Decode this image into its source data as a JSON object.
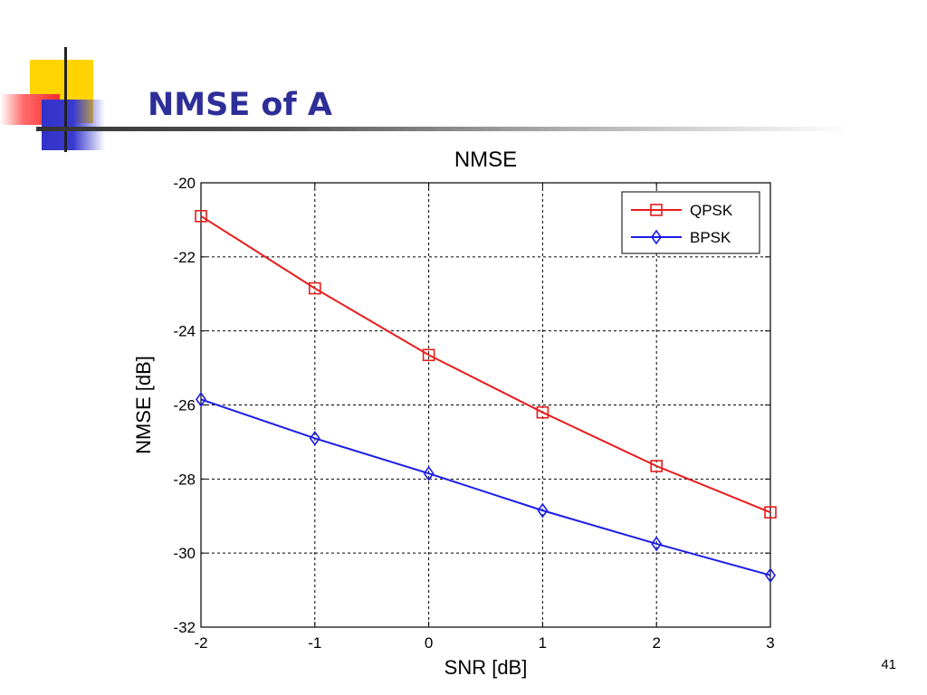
{
  "slide": {
    "title": "NMSE of A",
    "page_number": "41"
  },
  "colors": {
    "title": "#2e2e99",
    "deco_yellow": "#ffd400",
    "deco_red": "#ff2a2a",
    "deco_blue": "#3232c8"
  },
  "chart_data": {
    "type": "line",
    "title": "NMSE",
    "xlabel": "SNR [dB]",
    "ylabel": "NMSE [dB]",
    "xlim": [
      -2,
      3
    ],
    "ylim": [
      -32,
      -20
    ],
    "xticks": [
      -2,
      -1,
      0,
      1,
      2,
      3
    ],
    "yticks": [
      -32,
      -30,
      -28,
      -26,
      -24,
      -22,
      -20
    ],
    "grid": true,
    "legend_position": "top-right",
    "x": [
      -2,
      -1,
      0,
      1,
      2,
      3
    ],
    "series": [
      {
        "name": "QPSK",
        "color": "#e81c1c",
        "marker": "square",
        "values": [
          -20.9,
          -22.85,
          -24.65,
          -26.2,
          -27.65,
          -28.9
        ]
      },
      {
        "name": "BPSK",
        "color": "#1c1ce8",
        "marker": "diamond",
        "values": [
          -25.85,
          -26.9,
          -27.85,
          -28.85,
          -29.75,
          -30.6
        ]
      }
    ]
  }
}
